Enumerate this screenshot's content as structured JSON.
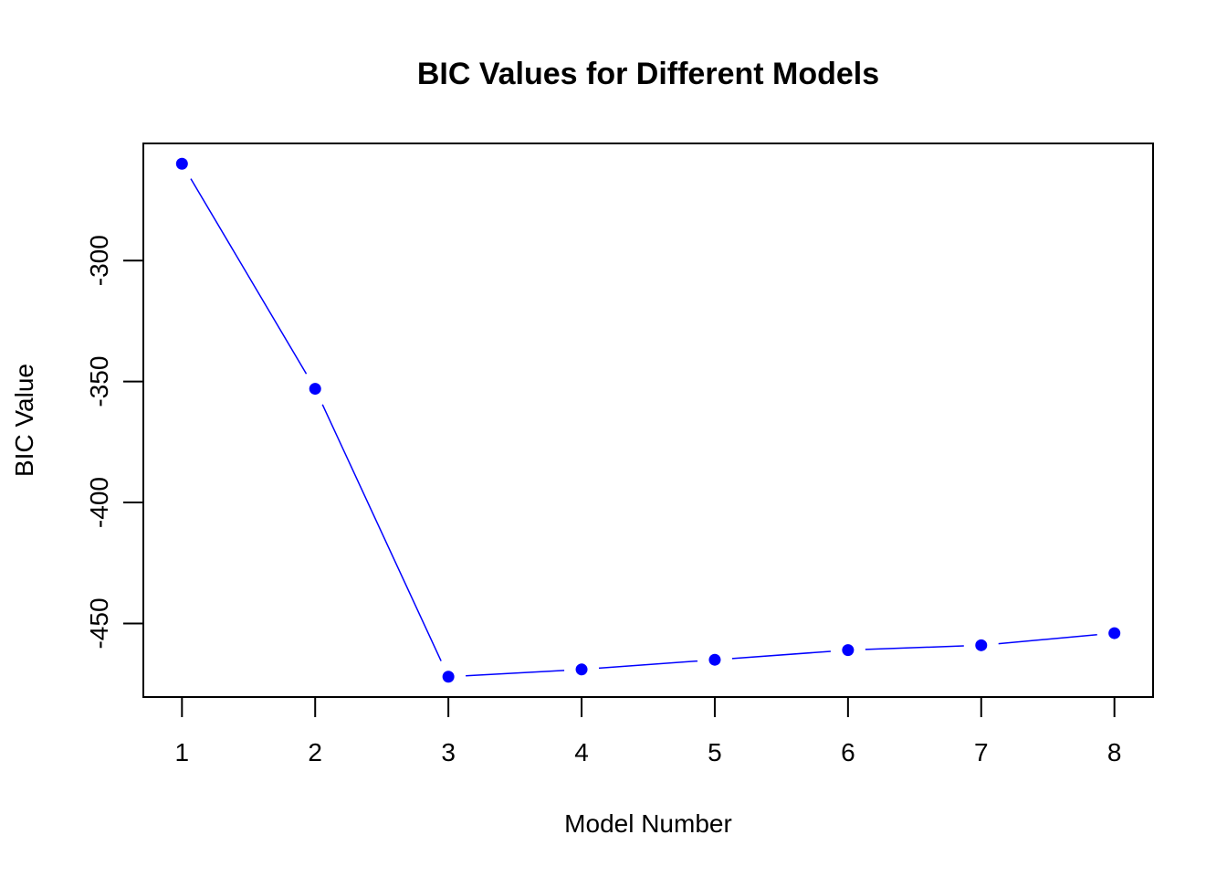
{
  "chart_data": {
    "type": "line",
    "title": "BIC Values for Different Models",
    "xlabel": "Model Number",
    "ylabel": "BIC Value",
    "x": [
      1,
      2,
      3,
      4,
      5,
      6,
      7,
      8
    ],
    "series": [
      {
        "values": [
          -260,
          -353,
          -472,
          -469,
          -465,
          -461,
          -459,
          -454
        ],
        "color": "#0000ff"
      }
    ],
    "xticks": [
      1,
      2,
      3,
      4,
      5,
      6,
      7,
      8
    ],
    "yticks": [
      -300,
      -350,
      -400,
      -450
    ],
    "xlim": [
      0.71,
      8.29
    ],
    "ylim": [
      -480.4,
      -251.6
    ],
    "grid": false,
    "marker": "filled-circle",
    "line_style": "solid with gaps at points"
  }
}
